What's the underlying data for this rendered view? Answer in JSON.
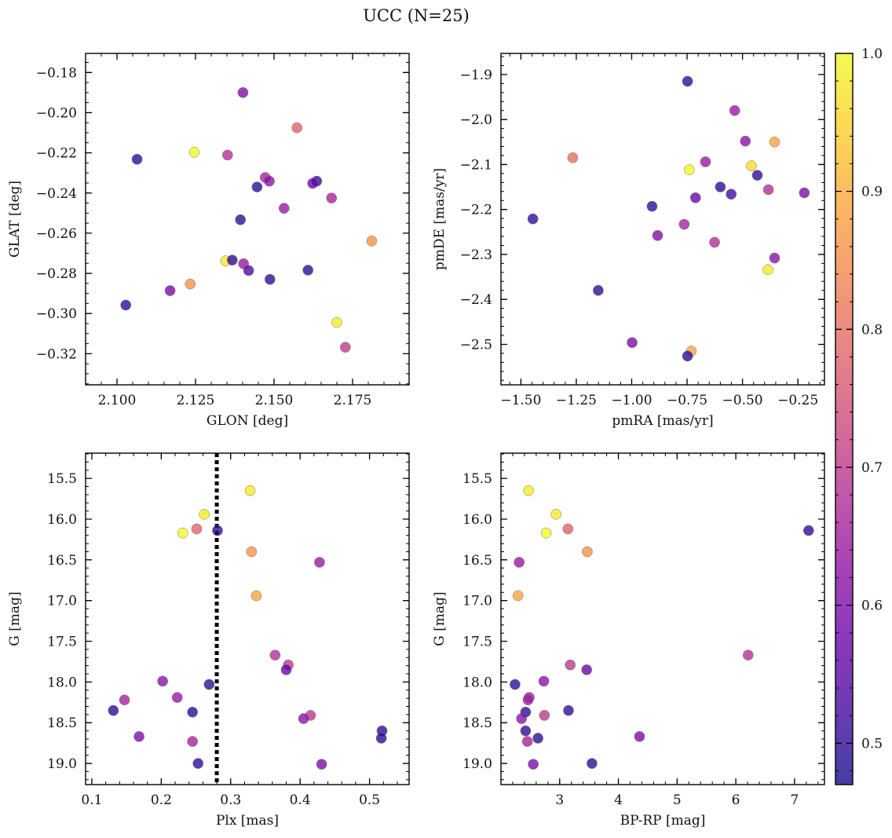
{
  "figure": {
    "title": "UCC (N=25)"
  },
  "colorbar": {
    "cmap": "plasma",
    "vmin": 0.47,
    "vmax": 1.0,
    "ticks": [
      0.5,
      0.6,
      0.7,
      0.8,
      0.9,
      1.0
    ],
    "tick_labels": [
      "0.5",
      "0.6",
      "0.7",
      "0.8",
      "0.9",
      "1.0"
    ],
    "stops": [
      "#0d0887",
      "#41049d",
      "#6a00a8",
      "#8f0da4",
      "#b12a90",
      "#cc4778",
      "#e16462",
      "#f2844b",
      "#fca636",
      "#fcce25",
      "#f0f921"
    ]
  },
  "chart_data": [
    {
      "type": "scatter",
      "panel": "top-left",
      "xlabel": "GLON [deg]",
      "ylabel": "GLAT [deg]",
      "xlim": [
        2.09,
        2.193
      ],
      "ylim": [
        -0.3355,
        -0.1705
      ],
      "y_inverted": false,
      "x_ticks": [
        2.1,
        2.125,
        2.15,
        2.175
      ],
      "x_tick_labels": [
        "2.100",
        "2.125",
        "2.150",
        "2.175"
      ],
      "y_ticks": [
        -0.18,
        -0.2,
        -0.22,
        -0.24,
        -0.26,
        -0.28,
        -0.3,
        -0.32
      ],
      "y_tick_labels": [
        "−0.18",
        "−0.20",
        "−0.22",
        "−0.24",
        "−0.26",
        "−0.28",
        "−0.30",
        "−0.32"
      ],
      "x_minor_step": 0.005,
      "y_minor_step": 0.005,
      "x": [
        2.1401,
        2.1573,
        2.1246,
        2.1064,
        2.1352,
        2.1472,
        2.1485,
        2.1636,
        2.1623,
        2.1446,
        2.1683,
        2.1393,
        2.1532,
        2.1811,
        2.1346,
        2.1367,
        2.1403,
        2.1419,
        2.1608,
        2.1487,
        2.1233,
        2.1169,
        2.1028,
        2.17,
        2.1727
      ],
      "y": [
        -0.19,
        -0.2075,
        -0.2197,
        -0.2232,
        -0.2211,
        -0.2323,
        -0.2341,
        -0.2341,
        -0.2352,
        -0.237,
        -0.2425,
        -0.2533,
        -0.2476,
        -0.2639,
        -0.2738,
        -0.2734,
        -0.2752,
        -0.2786,
        -0.2784,
        -0.283,
        -0.2853,
        -0.2886,
        -0.2958,
        -0.3044,
        -0.3168
      ],
      "color_values": [
        0.61,
        0.78,
        1.0,
        0.5,
        0.68,
        0.66,
        0.62,
        0.51,
        0.57,
        0.5,
        0.66,
        0.5,
        0.64,
        0.86,
        0.98,
        0.5,
        0.64,
        0.54,
        0.5,
        0.5,
        0.86,
        0.59,
        0.5,
        0.98,
        0.7
      ]
    },
    {
      "type": "scatter",
      "panel": "top-right",
      "xlabel": "pmRA [mas/yr]",
      "ylabel": "pmDE [mas/yr]",
      "xlim": [
        -1.59,
        -0.13
      ],
      "ylim": [
        -2.59,
        -1.853
      ],
      "y_inverted": false,
      "x_ticks": [
        -1.5,
        -1.25,
        -1.0,
        -0.75,
        -0.5,
        -0.25
      ],
      "x_tick_labels": [
        "−1.50",
        "−1.25",
        "−1.00",
        "−0.75",
        "−0.50",
        "−0.25"
      ],
      "y_ticks": [
        -1.9,
        -2.0,
        -2.1,
        -2.2,
        -2.3,
        -2.4,
        -2.5
      ],
      "y_tick_labels": [
        "−1.9",
        "−2.0",
        "−2.1",
        "−2.2",
        "−2.3",
        "−2.4",
        "−2.5"
      ],
      "x_minor_step": 0.05,
      "y_minor_step": 0.02,
      "x": [
        -0.748,
        -0.535,
        -0.487,
        -0.355,
        -1.266,
        -0.46,
        -0.667,
        -0.74,
        -0.433,
        -0.383,
        -0.6,
        -0.712,
        -0.221,
        -0.551,
        -0.908,
        -1.446,
        -0.883,
        -0.763,
        -0.626,
        -0.355,
        -0.385,
        -1.151,
        -0.998,
        -0.731,
        -0.748
      ],
      "y": [
        -1.915,
        -1.98,
        -2.048,
        -2.05,
        -2.085,
        -2.103,
        -2.094,
        -2.112,
        -2.124,
        -2.156,
        -2.15,
        -2.174,
        -2.163,
        -2.166,
        -2.193,
        -2.221,
        -2.258,
        -2.233,
        -2.273,
        -2.308,
        -2.334,
        -2.38,
        -2.496,
        -2.515,
        -2.526
      ],
      "color_values": [
        0.5,
        0.64,
        0.62,
        0.89,
        0.8,
        0.96,
        0.64,
        1.0,
        0.5,
        0.68,
        0.5,
        0.57,
        0.6,
        0.52,
        0.5,
        0.5,
        0.61,
        0.66,
        0.68,
        0.62,
        0.98,
        0.5,
        0.6,
        0.89,
        0.5
      ]
    },
    {
      "type": "scatter",
      "panel": "bottom-left",
      "xlabel": "Plx [mas]",
      "ylabel": "G [mag]",
      "xlim": [
        0.091,
        0.557
      ],
      "ylim": [
        19.26,
        15.19
      ],
      "y_inverted": true,
      "x_ticks": [
        0.1,
        0.2,
        0.3,
        0.4,
        0.5
      ],
      "x_tick_labels": [
        "0.1",
        "0.2",
        "0.3",
        "0.4",
        "0.5"
      ],
      "y_ticks": [
        15.5,
        16.0,
        16.5,
        17.0,
        17.5,
        18.0,
        18.5,
        19.0
      ],
      "y_tick_labels": [
        "15.5",
        "16.0",
        "16.5",
        "17.0",
        "17.5",
        "18.0",
        "18.5",
        "19.0"
      ],
      "x_minor_step": 0.02,
      "y_minor_step": 0.1,
      "vline": 0.28,
      "x": [
        0.328,
        0.262,
        0.251,
        0.231,
        0.281,
        0.33,
        0.428,
        0.337,
        0.364,
        0.383,
        0.38,
        0.202,
        0.269,
        0.223,
        0.147,
        0.131,
        0.245,
        0.415,
        0.405,
        0.518,
        0.168,
        0.517,
        0.245,
        0.253,
        0.431
      ],
      "y": [
        15.65,
        15.94,
        16.12,
        16.17,
        16.14,
        16.4,
        16.53,
        16.94,
        17.67,
        17.79,
        17.85,
        17.99,
        18.03,
        18.19,
        18.22,
        18.35,
        18.37,
        18.41,
        18.45,
        18.6,
        18.67,
        18.69,
        18.73,
        19.0,
        19.01
      ],
      "color_values": [
        0.98,
        0.98,
        0.78,
        1.0,
        0.5,
        0.86,
        0.64,
        0.89,
        0.68,
        0.7,
        0.57,
        0.62,
        0.5,
        0.64,
        0.66,
        0.5,
        0.5,
        0.7,
        0.62,
        0.5,
        0.6,
        0.5,
        0.66,
        0.5,
        0.6
      ]
    },
    {
      "type": "scatter",
      "panel": "bottom-right",
      "xlabel": "BP-RP [mag]",
      "ylabel": "G [mag]",
      "xlim": [
        2.0,
        7.51
      ],
      "ylim": [
        19.26,
        15.19
      ],
      "y_inverted": true,
      "x_ticks": [
        3,
        4,
        5,
        6,
        7
      ],
      "x_tick_labels": [
        "3",
        "4",
        "5",
        "6",
        "7"
      ],
      "y_ticks": [
        15.5,
        16.0,
        16.5,
        17.0,
        17.5,
        18.0,
        18.5,
        19.0
      ],
      "y_tick_labels": [
        "15.5",
        "16.0",
        "16.5",
        "17.0",
        "17.5",
        "18.0",
        "18.5",
        "19.0"
      ],
      "x_minor_step": 0.2,
      "y_minor_step": 0.1,
      "x": [
        2.47,
        2.94,
        3.14,
        2.77,
        7.24,
        3.47,
        2.31,
        2.29,
        6.21,
        3.18,
        3.46,
        2.73,
        2.24,
        2.48,
        2.46,
        3.15,
        2.42,
        2.74,
        2.35,
        2.42,
        4.36,
        2.63,
        2.45,
        3.55,
        2.55
      ],
      "y": [
        15.65,
        15.94,
        16.12,
        16.17,
        16.14,
        16.4,
        16.53,
        16.94,
        17.67,
        17.79,
        17.85,
        17.99,
        18.03,
        18.19,
        18.22,
        18.35,
        18.37,
        18.41,
        18.45,
        18.6,
        18.67,
        18.69,
        18.73,
        19.0,
        19.01
      ],
      "color_values": [
        0.98,
        0.98,
        0.78,
        1.0,
        0.5,
        0.86,
        0.64,
        0.89,
        0.68,
        0.7,
        0.57,
        0.62,
        0.5,
        0.64,
        0.66,
        0.5,
        0.5,
        0.7,
        0.62,
        0.5,
        0.6,
        0.5,
        0.66,
        0.5,
        0.6
      ]
    }
  ]
}
